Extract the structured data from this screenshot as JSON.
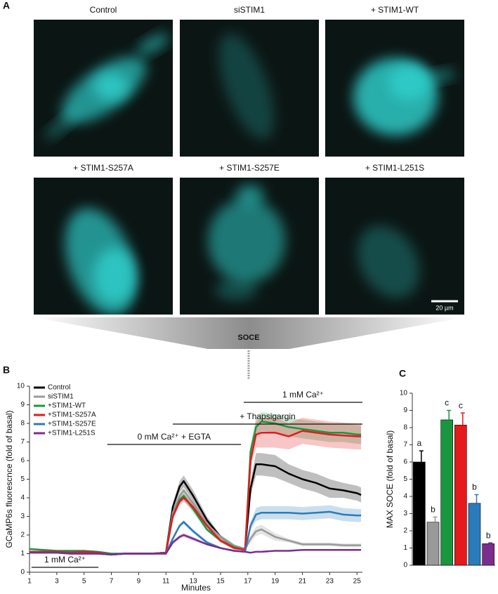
{
  "panel_a": {
    "letter": "A",
    "images": [
      {
        "label": "Control"
      },
      {
        "label": "siSTIM1"
      },
      {
        "label": "+ STIM1-WT"
      },
      {
        "label": "+ STIM1-S257A"
      },
      {
        "label": "+ STIM1-S257E"
      },
      {
        "label": "+ STIM1-L251S"
      }
    ],
    "scale_bar": "20 µm"
  },
  "soce_label": "SOCE",
  "chart_data": [
    {
      "type": "line",
      "panel": "B",
      "x_label": "Minutes",
      "y_label": "GCaMP6s fluorescnce (fold of basal)",
      "x": [
        1,
        2,
        3,
        4,
        5,
        6,
        7,
        8,
        9,
        10,
        11,
        11.5,
        12,
        12.3,
        13,
        14,
        15,
        16,
        16.8,
        17.2,
        17.6,
        18,
        19,
        20,
        21,
        22,
        23,
        24,
        25,
        25.3
      ],
      "series": [
        {
          "name": "Control",
          "color": "#000000",
          "values": [
            1.1,
            1.1,
            1.1,
            1.05,
            1.05,
            1.05,
            0.95,
            1.0,
            1.0,
            1.0,
            1.05,
            3.5,
            4.6,
            4.9,
            4.1,
            2.8,
            1.9,
            1.4,
            1.25,
            4.5,
            5.8,
            5.8,
            5.7,
            5.3,
            5.0,
            4.8,
            4.5,
            4.4,
            4.25,
            4.15
          ],
          "errors": [
            0.05,
            0.05,
            0.05,
            0.05,
            0.05,
            0.05,
            0.05,
            0.05,
            0.05,
            0.05,
            0.05,
            0.2,
            0.3,
            0.3,
            0.3,
            0.2,
            0.1,
            0.1,
            0.05,
            0.4,
            0.6,
            0.6,
            0.6,
            0.5,
            0.5,
            0.5,
            0.5,
            0.4,
            0.4,
            0.4
          ]
        },
        {
          "name": "siSTIM1",
          "color": "#999999",
          "values": [
            1.1,
            1.1,
            1.1,
            1.05,
            1.05,
            1.05,
            0.95,
            1.0,
            1.0,
            1.0,
            1.05,
            3.2,
            4.1,
            4.4,
            3.7,
            2.6,
            1.9,
            1.4,
            1.25,
            1.8,
            2.2,
            2.3,
            1.9,
            1.7,
            1.5,
            1.5,
            1.5,
            1.45,
            1.45,
            1.45
          ],
          "errors": [
            0.05,
            0.05,
            0.05,
            0.05,
            0.05,
            0.05,
            0.05,
            0.05,
            0.05,
            0.05,
            0.05,
            0.2,
            0.3,
            0.3,
            0.3,
            0.2,
            0.1,
            0.1,
            0.05,
            0.2,
            0.25,
            0.25,
            0.2,
            0.1,
            0.1,
            0.1,
            0.1,
            0.1,
            0.1,
            0.1
          ]
        },
        {
          "name": "+STIM1-WT",
          "color": "#1a9641",
          "values": [
            1.25,
            1.2,
            1.15,
            1.15,
            1.15,
            1.1,
            1.0,
            1.0,
            1.0,
            1.0,
            1.05,
            3.0,
            3.9,
            4.1,
            3.4,
            2.3,
            1.7,
            1.35,
            1.2,
            6.5,
            7.8,
            8.1,
            8.0,
            7.8,
            7.7,
            7.6,
            7.5,
            7.5,
            7.4,
            7.4
          ],
          "errors": [
            0.05,
            0.05,
            0.05,
            0.05,
            0.05,
            0.05,
            0.05,
            0.05,
            0.05,
            0.05,
            0.05,
            0.2,
            0.2,
            0.2,
            0.2,
            0.1,
            0.1,
            0.1,
            0.05,
            0.3,
            0.5,
            0.5,
            0.5,
            0.5,
            0.5,
            0.5,
            0.5,
            0.5,
            0.5,
            0.5
          ]
        },
        {
          "name": "+STIM1-S257A",
          "color": "#e41a1c",
          "values": [
            1.1,
            1.1,
            1.1,
            1.05,
            1.1,
            1.05,
            0.95,
            1.0,
            1.0,
            1.0,
            1.05,
            3.0,
            3.8,
            4.0,
            3.5,
            2.5,
            1.7,
            1.3,
            1.2,
            6.0,
            7.4,
            7.5,
            7.5,
            7.3,
            7.6,
            7.5,
            7.4,
            7.35,
            7.3,
            7.3
          ],
          "errors": [
            0.05,
            0.05,
            0.05,
            0.05,
            0.05,
            0.05,
            0.05,
            0.05,
            0.05,
            0.05,
            0.05,
            0.2,
            0.2,
            0.2,
            0.2,
            0.1,
            0.1,
            0.1,
            0.05,
            0.4,
            0.7,
            0.8,
            0.8,
            0.7,
            0.7,
            0.7,
            0.7,
            0.7,
            0.7,
            0.7
          ]
        },
        {
          "name": "+STIM1-S257E",
          "color": "#2b7bba",
          "values": [
            1.05,
            1.05,
            1.05,
            1.0,
            1.0,
            1.0,
            0.95,
            1.0,
            1.0,
            1.0,
            1.0,
            1.8,
            2.5,
            2.7,
            2.2,
            1.6,
            1.3,
            1.15,
            1.1,
            2.5,
            3.1,
            3.2,
            3.2,
            3.2,
            3.15,
            3.2,
            3.25,
            3.1,
            3.05,
            3.05
          ],
          "errors": [
            0.05,
            0.05,
            0.05,
            0.05,
            0.05,
            0.05,
            0.05,
            0.05,
            0.05,
            0.05,
            0.05,
            0.1,
            0.1,
            0.1,
            0.1,
            0.1,
            0.05,
            0.05,
            0.05,
            0.2,
            0.35,
            0.35,
            0.35,
            0.35,
            0.35,
            0.35,
            0.35,
            0.35,
            0.35,
            0.35
          ]
        },
        {
          "name": "+STIM1-L251S",
          "color": "#7b2d8e",
          "values": [
            1.05,
            1.05,
            1.05,
            1.0,
            1.0,
            1.0,
            0.95,
            1.0,
            1.0,
            1.0,
            1.0,
            1.6,
            1.9,
            2.0,
            1.8,
            1.5,
            1.3,
            1.15,
            1.1,
            1.05,
            1.1,
            1.1,
            1.15,
            1.15,
            1.2,
            1.2,
            1.2,
            1.2,
            1.2,
            1.2
          ],
          "errors": [
            0.03,
            0.03,
            0.03,
            0.03,
            0.03,
            0.03,
            0.03,
            0.03,
            0.03,
            0.03,
            0.03,
            0.1,
            0.1,
            0.1,
            0.1,
            0.05,
            0.05,
            0.05,
            0.03,
            0.03,
            0.03,
            0.03,
            0.03,
            0.03,
            0.03,
            0.03,
            0.03,
            0.03,
            0.03,
            0.03
          ]
        }
      ],
      "annotations": [
        {
          "text": "1 mM Ca²⁺",
          "start": 16.7,
          "end": 25.4
        },
        {
          "text": "+ Thapsigargin",
          "start": 11.5,
          "end": 25.4
        },
        {
          "text": "0 mM Ca²⁺ + EGTA",
          "start": 6.7,
          "end": 16.5
        },
        {
          "text": "1 mM Ca²⁺",
          "start": 1.15,
          "end": 6.05
        }
      ],
      "xlim": [
        1,
        25.4
      ],
      "xticks": [
        1,
        3,
        5,
        7,
        9,
        11,
        13,
        15,
        17,
        19,
        21,
        23,
        25
      ],
      "ylim": [
        0,
        10
      ],
      "yticks": [
        0,
        1,
        2,
        3,
        4,
        5,
        6,
        7,
        8,
        9,
        10
      ],
      "legend": "upper-left"
    },
    {
      "type": "bar",
      "panel": "C",
      "y_label": "MAX SOCE (fold of basal)",
      "categories": [
        null,
        null,
        null,
        null,
        null,
        null
      ],
      "values": [
        6.0,
        2.5,
        8.45,
        8.15,
        3.6,
        1.25
      ],
      "errors": [
        0.65,
        0.3,
        0.55,
        0.7,
        0.5,
        0.05
      ],
      "annotations": [
        "a",
        "b",
        "c",
        "c",
        "b",
        "b"
      ],
      "colors": [
        "#000000",
        "#999999",
        "#1a9641",
        "#e41a1c",
        "#2b7bba",
        "#7b2d8e"
      ],
      "ylim": [
        0,
        10
      ],
      "yticks": [
        0,
        1,
        2,
        3,
        4,
        5,
        6,
        7,
        8,
        9,
        10
      ]
    }
  ]
}
